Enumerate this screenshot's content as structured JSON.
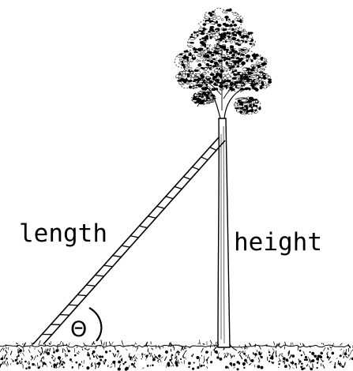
{
  "labels": {
    "length": "length",
    "height": "height",
    "angle": "Θ"
  },
  "colors": {
    "ink": "#000000",
    "background": "#ffffff"
  }
}
